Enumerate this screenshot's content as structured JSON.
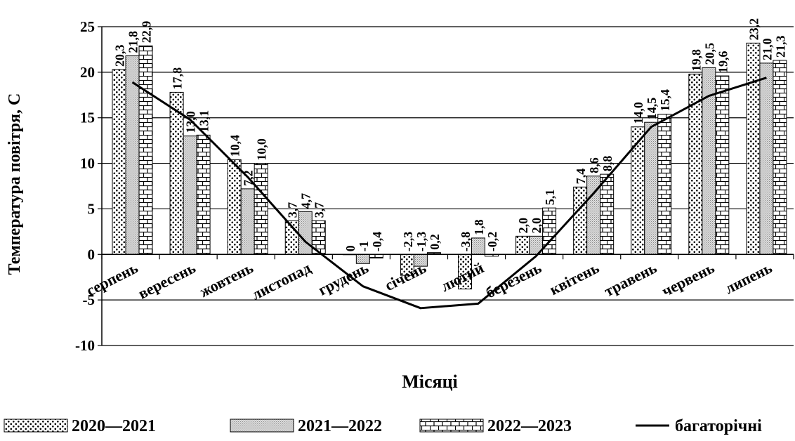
{
  "chart_data": {
    "type": "bar",
    "title": "",
    "xlabel": "Місяці",
    "ylabel": "Температура повітря, С",
    "ylim": [
      -10,
      25
    ],
    "yticks": [
      "-10",
      "-5",
      "0",
      "5",
      "10",
      "15",
      "20",
      "25"
    ],
    "grid": true,
    "legend_position": "bottom",
    "categories": [
      "серпень",
      "вересень",
      "жовтень",
      "листопад",
      "грудень",
      "січень",
      "лютий",
      "березень",
      "квітень",
      "травень",
      "червень",
      "липень"
    ],
    "series": [
      {
        "name": "2020—2021",
        "pattern": "dots",
        "values": [
          20.3,
          17.8,
          10.4,
          3.7,
          0,
          -2.3,
          -3.8,
          2.0,
          7.4,
          14.0,
          19.8,
          23.2
        ],
        "labels": [
          "20,3",
          "17,8",
          "10,4",
          "3,7",
          "0",
          "-2,3",
          "-3,8",
          "2,0",
          "7,4",
          "14,0",
          "19,8",
          "23,2"
        ]
      },
      {
        "name": "2021—2022",
        "pattern": "fine-dots",
        "values": [
          21.8,
          13.0,
          7.2,
          4.7,
          -1.0,
          -1.3,
          1.8,
          2.0,
          8.6,
          14.5,
          20.5,
          21.0
        ],
        "labels": [
          "21,8",
          "13,0",
          "7,2",
          "4,7",
          "-1",
          "-1,3",
          "1,8",
          "2,0",
          "8,6",
          "14,5",
          "20,5",
          "21,0"
        ]
      },
      {
        "name": "2022—2023",
        "pattern": "bricks",
        "values": [
          22.9,
          13.1,
          10.0,
          3.7,
          -0.4,
          0.2,
          -0.2,
          5.1,
          8.8,
          15.4,
          19.6,
          21.3
        ],
        "labels": [
          "22,9",
          "13,1",
          "10,0",
          "3,7",
          "-0,4",
          "0,2",
          "-0,2",
          "5,1",
          "8,8",
          "15,4",
          "19,6",
          "21,3"
        ]
      }
    ],
    "line_series": {
      "name": "багаторічні",
      "values": [
        18.9,
        14.8,
        8.5,
        1.4,
        -3.5,
        -5.9,
        -5.4,
        -0.2,
        6.7,
        14.0,
        17.4,
        19.4
      ]
    }
  }
}
